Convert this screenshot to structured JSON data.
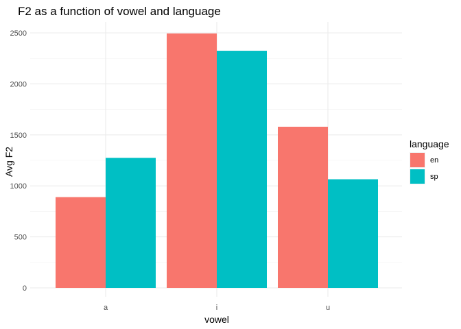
{
  "chart_data": {
    "type": "bar",
    "title": "F2 as a function of vowel and language",
    "xlabel": "vowel",
    "ylabel": "Avg F2",
    "categories": [
      "a",
      "i",
      "u"
    ],
    "series": [
      {
        "name": "en",
        "color": "#F8766D",
        "values": [
          890,
          2495,
          1580
        ]
      },
      {
        "name": "sp",
        "color": "#00BFC4",
        "values": [
          1275,
          2325,
          1065
        ]
      }
    ],
    "ylim": [
      0,
      2600
    ],
    "yticks": [
      0,
      500,
      1000,
      1500,
      2000,
      2500
    ],
    "grid": true,
    "legend": {
      "title": "language",
      "position": "right"
    }
  }
}
